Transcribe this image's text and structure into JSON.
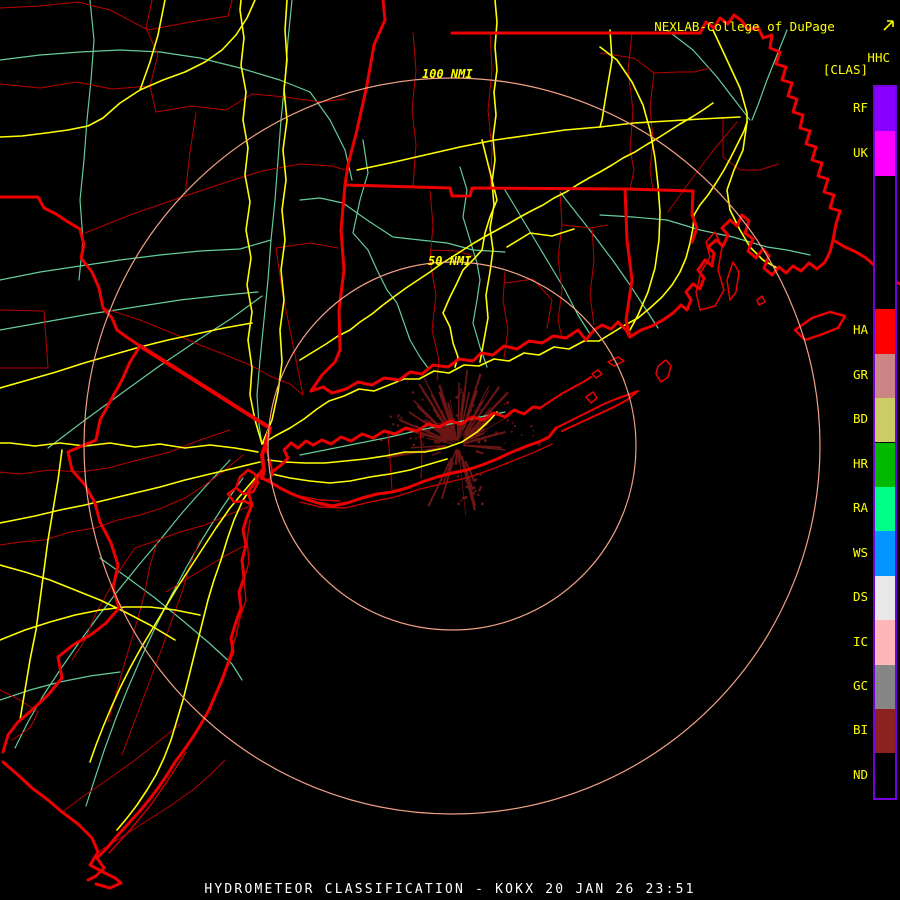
{
  "header": {
    "brand": "NEXLAB-College of DuPage",
    "product_code": "HHC",
    "product_tag": "[CLAS]"
  },
  "rings": {
    "outer_label": "100 NMI",
    "inner_label": "50 NMI"
  },
  "caption": "HYDROMETEOR CLASSIFICATION - KOKX 20 JAN 26 23:51",
  "radar": {
    "station": "KOKX",
    "product": "HYDROMETEOR CLASSIFICATION",
    "datetime": "20 JAN 26 23:51"
  },
  "legend": {
    "items": [
      {
        "code": "RF",
        "color": "#8800ff"
      },
      {
        "code": "UK",
        "color": "#ff00ff"
      },
      {
        "code": "HA",
        "color": "#ff0000"
      },
      {
        "code": "GR",
        "color": "#cc8585"
      },
      {
        "code": "BD",
        "color": "#cccc66"
      },
      {
        "code": "HR",
        "color": "#00b800"
      },
      {
        "code": "RA",
        "color": "#00ff88"
      },
      {
        "code": "WS",
        "color": "#0095ff"
      },
      {
        "code": "DS",
        "color": "#e8e8e8"
      },
      {
        "code": "IC",
        "color": "#ffb6b6"
      },
      {
        "code": "GC",
        "color": "#868686"
      },
      {
        "code": "BI",
        "color": "#8b2121"
      },
      {
        "code": "ND",
        "color": "#000000"
      }
    ]
  },
  "colors": {
    "background": "#000000",
    "state_border": "#ee0000",
    "county_line": "#bb0000",
    "barrier_line": "#cc0000",
    "highway": "#ffff00",
    "road": "#66cc99",
    "range_ring": "#f2a285",
    "radar_echo": "#6b1515",
    "legend_border": "#7700dd",
    "text_yellow": "#ffff00",
    "text_white": "#ffffff"
  }
}
